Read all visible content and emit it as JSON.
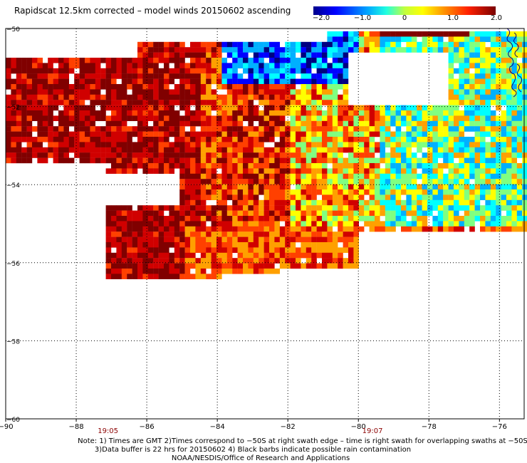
{
  "title": "Rapidscat 12.5km corrected – model winds 20150602 ascending",
  "colorbar": {
    "labels": [
      "−2.0",
      "−1.0",
      "0",
      "1.0",
      "2.0"
    ],
    "range": [
      -2.0,
      2.0
    ],
    "colors": [
      "#000080",
      "#0000ff",
      "#00b0ff",
      "#00ffff",
      "#80ff80",
      "#ffff00",
      "#ffa000",
      "#ff4000",
      "#d00000",
      "#800000"
    ]
  },
  "map": {
    "lon_range": [
      -90,
      -75.3
    ],
    "lat_range": [
      -60,
      -50
    ],
    "x_tick_labels": [
      "−90",
      "−88",
      "−86",
      "−84",
      "−82",
      "−80",
      "−78",
      "−76"
    ],
    "x_tick_values": [
      -90,
      -88,
      -86,
      -84,
      -82,
      -80,
      -78,
      -76
    ],
    "y_tick_labels": [
      "−50",
      "−52",
      "−54",
      "−56",
      "−58",
      "−60"
    ],
    "y_tick_values": [
      -50,
      -52,
      -54,
      -56,
      -58,
      -60
    ],
    "time_labels": [
      {
        "text": "19:05",
        "lon": -87.1
      },
      {
        "text": "19:07",
        "lon": -79.6
      }
    ],
    "grid": "dotted",
    "coastline_color": "#000080"
  },
  "notes": [
    "Note: 1) Times are GMT 2)Times correspond to −50S at right swath edge – time is right swath for overlapping swaths at −50S",
    "3)Data buffer is 22 hrs for 20150602 4) Black barbs indicate possible rain contamination",
    "NOAA/NESDIS/Office of Research and Applications"
  ]
}
